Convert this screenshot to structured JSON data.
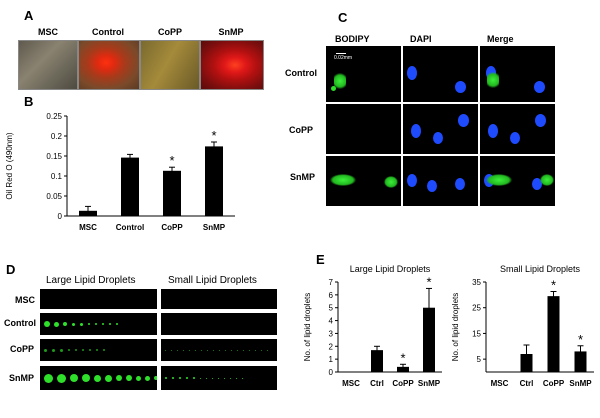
{
  "panels": {
    "A": {
      "letter": "A",
      "images": [
        "MSC",
        "Control",
        "CoPP",
        "SnMP"
      ]
    },
    "B": {
      "letter": "B",
      "chart_data": {
        "type": "bar",
        "categories": [
          "MSC",
          "Control",
          "CoPP",
          "SnMP"
        ],
        "values": [
          0.013,
          0.146,
          0.113,
          0.174
        ],
        "errors": [
          0.011,
          0.008,
          0.009,
          0.011
        ],
        "significant": [
          false,
          false,
          true,
          true
        ],
        "ylabel": "Oil Red O (490nm)",
        "ylim": [
          0,
          0.25
        ],
        "yticks": [
          "0",
          "0.05",
          "0.1",
          "0.15",
          "0.2",
          "0.25"
        ],
        "star": "*"
      }
    },
    "C": {
      "letter": "C",
      "columns": [
        "BODIPY",
        "DAPI",
        "Merge"
      ],
      "rows": [
        "Control",
        "CoPP",
        "SnMP"
      ],
      "scale_bar": "0.02mm"
    },
    "D": {
      "letter": "D",
      "columns": [
        "Large Lipid Droplets",
        "Small Lipid Droplets"
      ],
      "rows": [
        "MSC",
        "Control",
        "CoPP",
        "SnMP"
      ]
    },
    "E": {
      "letter": "E",
      "chart_data": [
        {
          "type": "bar",
          "title": "Large Lipid Droplets",
          "ylabel": "No. of lipid droplets",
          "categories": [
            "MSC",
            "Ctrl",
            "CoPP",
            "SnMP"
          ],
          "values": [
            0,
            1.7,
            0.4,
            5.0
          ],
          "errors": [
            0,
            0.3,
            0.2,
            1.5
          ],
          "significant": [
            false,
            false,
            true,
            true
          ],
          "ylim": [
            0,
            7
          ],
          "yticks": [
            "0",
            "1",
            "2",
            "3",
            "4",
            "5",
            "6",
            "7"
          ]
        },
        {
          "type": "bar",
          "title": "Small Lipid Droplets",
          "ylabel": "No. of lipid droplets",
          "categories": [
            "MSC",
            "Ctrl",
            "CoPP",
            "SnMP"
          ],
          "values": [
            0,
            7,
            29.5,
            8
          ],
          "errors": [
            0,
            3.5,
            1.8,
            2.2
          ],
          "significant": [
            false,
            false,
            true,
            true
          ],
          "ylim": [
            0,
            35
          ],
          "yticks": [
            "5",
            "15",
            "25",
            "35"
          ]
        }
      ]
    }
  },
  "colors": {
    "bar": "#000000",
    "bodipy": "#2ee02a",
    "dapi": "#1f4bff"
  }
}
